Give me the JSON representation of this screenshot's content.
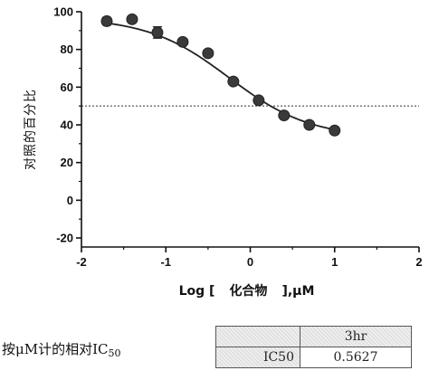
{
  "chart_data": {
    "type": "scatter",
    "title": "",
    "xlabel_prefix": "Log [",
    "xlabel_compound": "化合物",
    "xlabel_suffix": "],μM",
    "ylabel": "对照的百分比",
    "xlim": [
      -2,
      2
    ],
    "ylim": [
      -20,
      100
    ],
    "x_ticks": [
      "-2",
      "-1",
      "0",
      "1",
      "2"
    ],
    "y_ticks": [
      "-20",
      "0",
      "20",
      "40",
      "60",
      "80",
      "100"
    ],
    "reference_line": 50,
    "points": [
      {
        "x": -1.7,
        "y": 95,
        "err": 2
      },
      {
        "x": -1.4,
        "y": 96,
        "err": 1.5
      },
      {
        "x": -1.1,
        "y": 89,
        "err": 3
      },
      {
        "x": -0.8,
        "y": 84,
        "err": 1.5
      },
      {
        "x": -0.5,
        "y": 78,
        "err": 1.5
      },
      {
        "x": -0.2,
        "y": 63,
        "err": 1
      },
      {
        "x": 0.1,
        "y": 53,
        "err": 1
      },
      {
        "x": 0.4,
        "y": 45,
        "err": 1
      },
      {
        "x": 0.7,
        "y": 40,
        "err": 1
      },
      {
        "x": 1.0,
        "y": 37,
        "err": 1
      }
    ],
    "fit": {
      "bottom": 33,
      "top": 97,
      "logIC50": -0.25,
      "hill": 0.9
    }
  },
  "ic50_caption": "按μM计的相对IC",
  "ic50_caption_sub": "50",
  "ic50_table": {
    "header": "3hr",
    "row_label": "IC50",
    "row_value": "0.5627"
  }
}
